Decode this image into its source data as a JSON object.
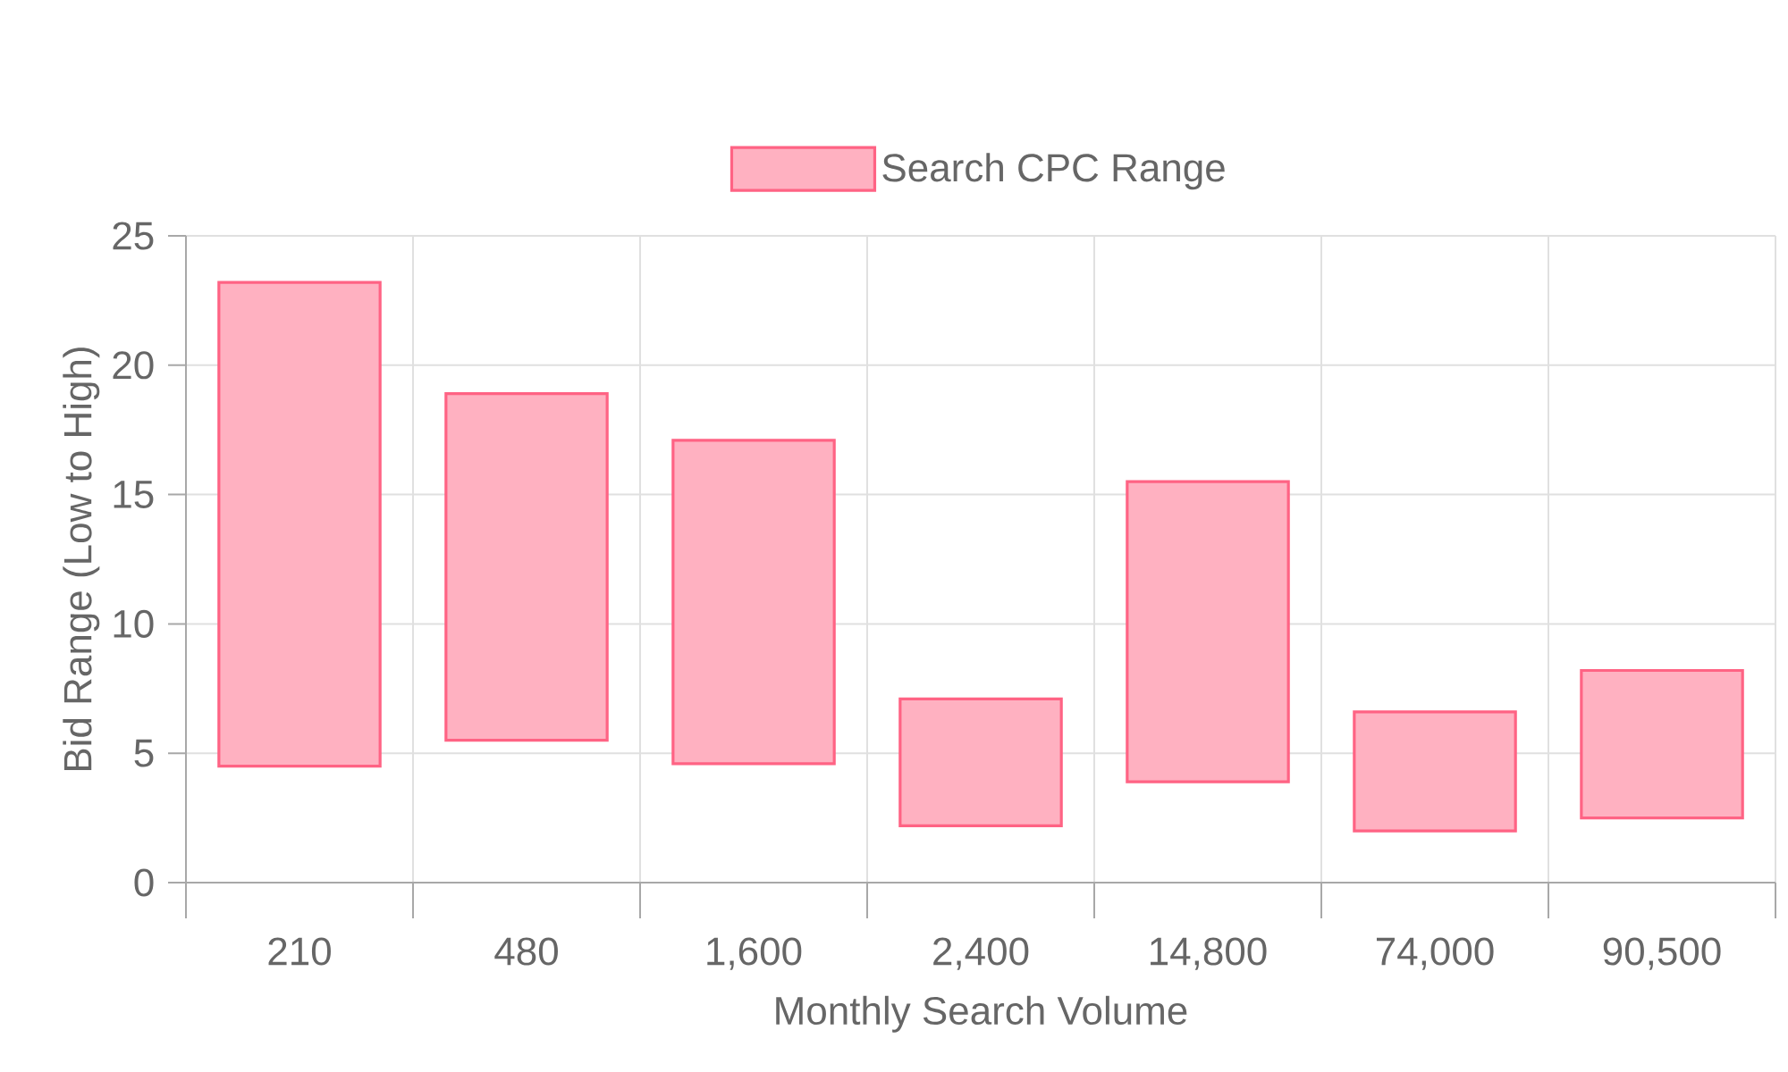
{
  "chart_data": {
    "type": "bar",
    "xlabel": "Monthly Search Volume",
    "ylabel": "Bid Range (Low to High)",
    "categories": [
      "210",
      "480",
      "1,600",
      "2,400",
      "14,800",
      "74,000",
      "90,500"
    ],
    "series": [
      {
        "name": "Search CPC Range",
        "color": "#ff6384",
        "values": [
          18.7,
          13.4,
          12.5,
          4.9,
          11.6,
          4.6,
          5.7
        ],
        "base": [
          4.5,
          5.5,
          4.6,
          2.2,
          3.9,
          2.0,
          2.5
        ]
      }
    ],
    "ylim": [
      0,
      25
    ],
    "yticks": [
      0,
      5,
      10,
      15,
      20,
      25
    ],
    "grid": true,
    "legend": "top"
  }
}
